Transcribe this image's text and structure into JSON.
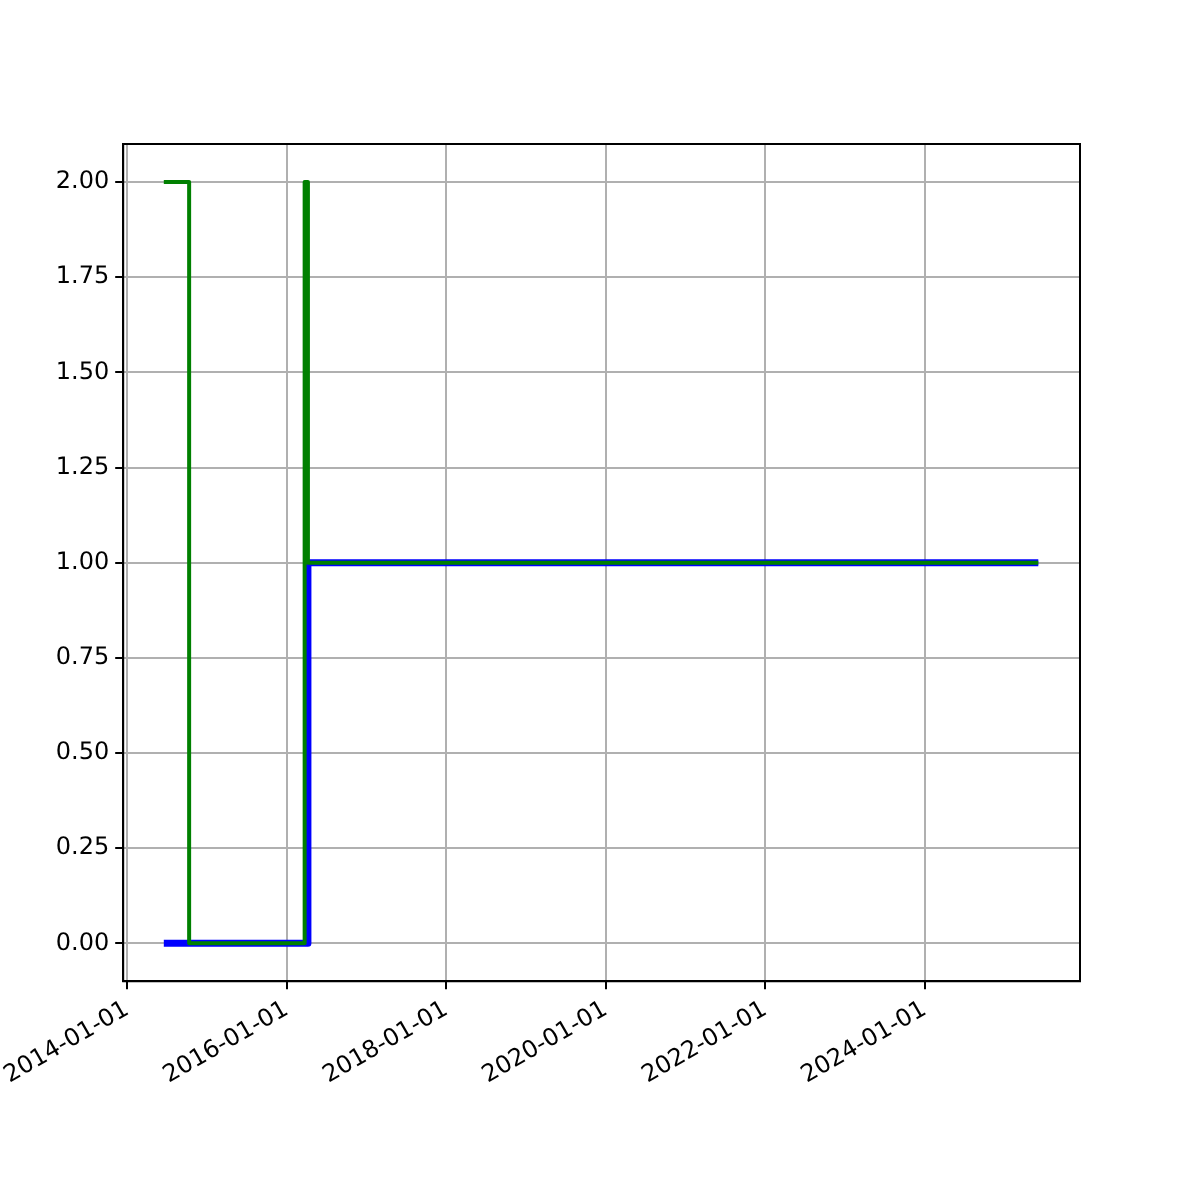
{
  "chart_data": {
    "type": "step",
    "x": [
      "2014-06-18",
      "2014-10-12",
      "2016-03-24",
      "2016-04-08",
      "2025-06-05"
    ],
    "series": [
      {
        "color": "#0000ff",
        "x": [
          "2014-06-18",
          "2016-04-08",
          "2025-06-05"
        ],
        "values": [
          0,
          1,
          1
        ]
      },
      {
        "color": "#008000",
        "values": [
          2,
          0,
          2,
          1,
          1
        ]
      }
    ],
    "xlim": [
      "2013-12-14",
      "2025-12-13"
    ],
    "xticks": [
      "2014-01-01",
      "2016-01-01",
      "2018-01-01",
      "2020-01-01",
      "2022-01-01",
      "2024-01-01"
    ],
    "ylim": [
      -0.1,
      2.1
    ],
    "yticks": [
      {
        "value": 0,
        "label": "0.00"
      },
      {
        "value": 0.25,
        "label": "0.25"
      },
      {
        "value": 0.5,
        "label": "0.50"
      },
      {
        "value": 0.75,
        "label": "0.75"
      },
      {
        "value": 1,
        "label": "1.00"
      },
      {
        "value": 1.25,
        "label": "1.25"
      },
      {
        "value": 1.5,
        "label": "1.50"
      },
      {
        "value": 1.75,
        "label": "1.75"
      },
      {
        "value": 2,
        "label": "2.00"
      }
    ],
    "grid": true,
    "legend": false
  }
}
